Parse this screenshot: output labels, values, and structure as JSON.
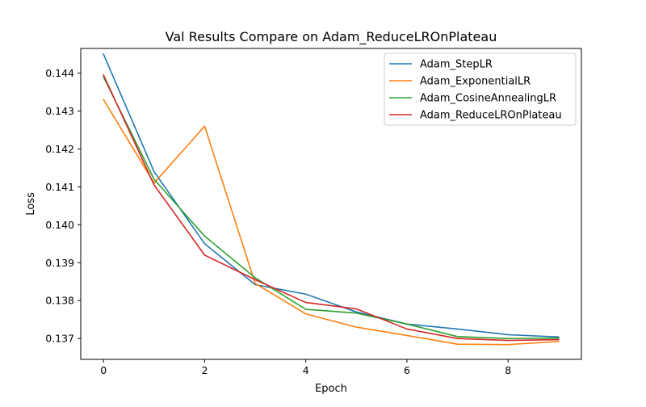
{
  "chart_data": {
    "type": "line",
    "title": "Val Results Compare on Adam_ReduceLROnPlateau",
    "xlabel": "Epoch",
    "ylabel": "Loss",
    "xlim": [
      -0.45,
      9.45
    ],
    "ylim": [
      0.13645,
      0.14465
    ],
    "xticks": [
      0,
      2,
      4,
      6,
      8
    ],
    "xtick_labels": [
      "0",
      "2",
      "4",
      "6",
      "8"
    ],
    "yticks": [
      0.137,
      0.138,
      0.139,
      0.14,
      0.141,
      0.142,
      0.143,
      0.144
    ],
    "ytick_labels": [
      "0.137",
      "0.138",
      "0.139",
      "0.140",
      "0.141",
      "0.142",
      "0.143",
      "0.144"
    ],
    "grid": false,
    "legend_position": "top-right",
    "x": [
      0,
      1,
      2,
      3,
      4,
      5,
      6,
      7,
      8,
      9
    ],
    "series": [
      {
        "name": "Adam_StepLR",
        "color": "#1f77b4",
        "values": [
          0.1445,
          0.1414,
          0.1395,
          0.13842,
          0.13817,
          0.1377,
          0.13738,
          0.13725,
          0.1371,
          0.13704
        ]
      },
      {
        "name": "Adam_ExponentialLR",
        "color": "#ff7f0e",
        "values": [
          0.1433,
          0.1411,
          0.1426,
          0.13845,
          0.13765,
          0.1373,
          0.13708,
          0.13685,
          0.13684,
          0.13692
        ]
      },
      {
        "name": "Adam_CosineAnnealingLR",
        "color": "#2ca02c",
        "values": [
          0.1439,
          0.1412,
          0.1397,
          0.1386,
          0.13777,
          0.13767,
          0.13738,
          0.13705,
          0.137,
          0.13701
        ]
      },
      {
        "name": "Adam_ReduceLROnPlateau",
        "color": "#d62728",
        "values": [
          0.14395,
          0.14105,
          0.1392,
          0.13855,
          0.13795,
          0.13778,
          0.13725,
          0.137,
          0.13695,
          0.13697
        ]
      }
    ]
  }
}
